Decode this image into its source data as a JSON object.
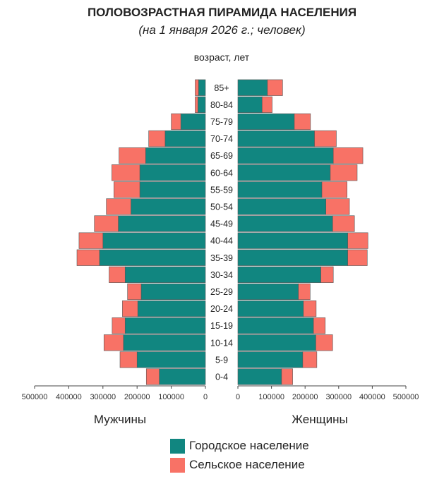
{
  "chart_data": {
    "type": "bar",
    "title": "ПОЛОВОЗРАСТНАЯ ПИРАМИДА НАСЕЛЕНИЯ",
    "subtitle": "(на 1 января 2026 г.; человек)",
    "age_axis_label": "возраст, лет",
    "categories": [
      "0-4",
      "5-9",
      "10-14",
      "15-19",
      "20-24",
      "25-29",
      "30-34",
      "35-39",
      "40-44",
      "45-49",
      "50-54",
      "55-59",
      "60-64",
      "65-69",
      "70-74",
      "75-79",
      "80-84",
      "85+"
    ],
    "x_ticks": [
      "500000",
      "400000",
      "300000",
      "200000",
      "100000",
      "0",
      "0",
      "100000",
      "200000",
      "300000",
      "400000",
      "500000"
    ],
    "xlim": [
      0,
      500000
    ],
    "groups": [
      {
        "name": "Мужчины",
        "series": [
          {
            "name": "Городское население",
            "values": [
              135000,
              200000,
              240000,
              235000,
              198000,
              188000,
              235000,
              310000,
              300000,
              255000,
              218000,
              192000,
              192000,
              175000,
              118000,
              72000,
              22000,
              20000
            ]
          },
          {
            "name": "Сельское население",
            "values": [
              38000,
              50000,
              57000,
              38000,
              45000,
              40000,
              47000,
              66000,
              70000,
              70000,
              72000,
              76000,
              82000,
              78000,
              48000,
              28000,
              8000,
              10000
            ]
          }
        ]
      },
      {
        "name": "Женщины",
        "series": [
          {
            "name": "Городское население",
            "values": [
              130000,
              193000,
              232000,
              225000,
              195000,
              180000,
              247000,
              327000,
              327000,
              282000,
              262000,
              250000,
              275000,
              284000,
              228000,
              168000,
              72000,
              88000
            ]
          },
          {
            "name": "Сельское население",
            "values": [
              33000,
              42000,
              50000,
              35000,
              38000,
              35000,
              37000,
              58000,
              60000,
              65000,
              70000,
              75000,
              80000,
              88000,
              65000,
              48000,
              30000,
              45000
            ]
          }
        ]
      }
    ],
    "legend": [
      {
        "label": "Городское население",
        "color": "#118680"
      },
      {
        "label": "Сельское население",
        "color": "#f87266"
      }
    ],
    "legend_position": "bottom-center",
    "grid": false
  }
}
